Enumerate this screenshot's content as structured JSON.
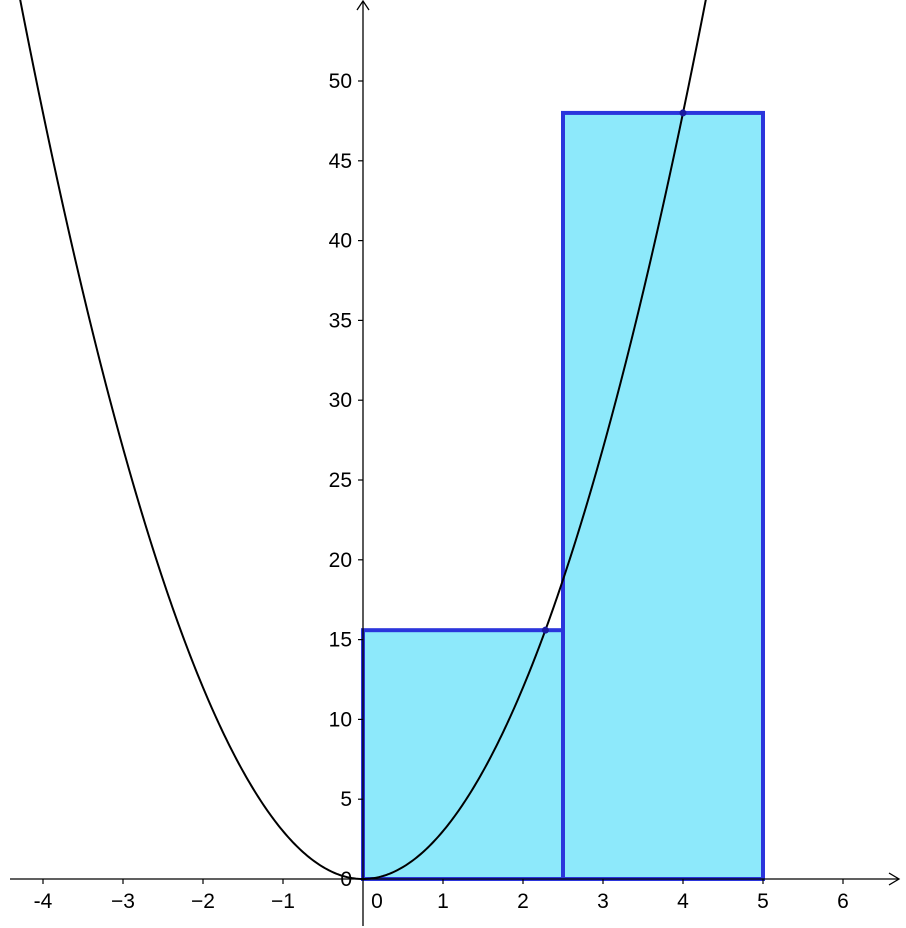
{
  "chart_data": {
    "type": "area",
    "title": "",
    "xlabel": "",
    "ylabel": "",
    "xlim": [
      -4.5,
      6.7
    ],
    "ylim": [
      -3,
      55
    ],
    "x_ticks": [
      {
        "value": -4,
        "label": "-4"
      },
      {
        "value": -3,
        "label": "−3"
      },
      {
        "value": -2,
        "label": "−2"
      },
      {
        "value": -1,
        "label": "−1"
      },
      {
        "value": 0,
        "label": "0"
      },
      {
        "value": 1,
        "label": "1"
      },
      {
        "value": 2,
        "label": "2"
      },
      {
        "value": 3,
        "label": "3"
      },
      {
        "value": 4,
        "label": "4"
      },
      {
        "value": 5,
        "label": "5"
      },
      {
        "value": 6,
        "label": "6"
      }
    ],
    "y_ticks": [
      {
        "value": 0,
        "label": "0"
      },
      {
        "value": 5,
        "label": "5"
      },
      {
        "value": 10,
        "label": "10"
      },
      {
        "value": 15,
        "label": "15"
      },
      {
        "value": 20,
        "label": "20"
      },
      {
        "value": 25,
        "label": "25"
      },
      {
        "value": 30,
        "label": "30"
      },
      {
        "value": 35,
        "label": "35"
      },
      {
        "value": 40,
        "label": "40"
      },
      {
        "value": 45,
        "label": "45"
      },
      {
        "value": 50,
        "label": "50"
      }
    ],
    "grid": false,
    "curve": {
      "function": "3x^2",
      "coefficient": 3,
      "x_range": [
        -4.5,
        4.5
      ],
      "color": "#000000"
    },
    "rectangles": [
      {
        "x_start": 0,
        "x_end": 2.5,
        "height": 15.59
      },
      {
        "x_start": 2.5,
        "x_end": 5,
        "height": 48
      }
    ],
    "sample_points": [
      {
        "x": 2.28,
        "y": 15.59
      },
      {
        "x": 4,
        "y": 48
      }
    ],
    "colors": {
      "rect_fill": "#8de9fb",
      "rect_stroke": "#2b35dc",
      "axis": "#000000",
      "point": "#1a1aa0"
    }
  }
}
